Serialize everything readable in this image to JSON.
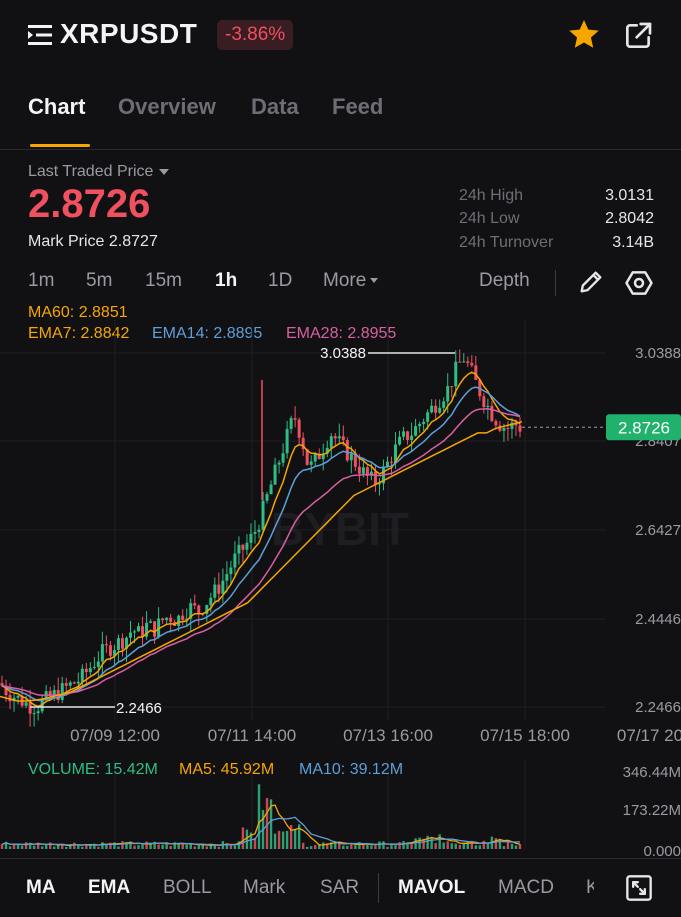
{
  "header": {
    "symbol": "XRPUSDT",
    "change": "-3.86%",
    "icons": [
      "menu-icon",
      "star-icon",
      "share-icon"
    ],
    "colors": {
      "negative": "#f0505f",
      "star": "#f7a600"
    }
  },
  "tabs": [
    {
      "label": "Chart",
      "active": true
    },
    {
      "label": "Overview",
      "active": false
    },
    {
      "label": "Data",
      "active": false
    },
    {
      "label": "Feed",
      "active": false
    }
  ],
  "price": {
    "ltp_label": "Last Traded Price",
    "last_price": "2.8726",
    "mark_label": "Mark Price",
    "mark_value": "2.8727",
    "stats": [
      {
        "label": "24h High",
        "value": "3.0131"
      },
      {
        "label": "24h Low",
        "value": "2.8042"
      },
      {
        "label": "24h Turnover",
        "value": "3.14B"
      }
    ]
  },
  "timeframes": {
    "items": [
      "1m",
      "5m",
      "15m",
      "1h",
      "1D",
      "More"
    ],
    "active": "1h",
    "depth": "Depth",
    "icons": [
      "pencil-icon",
      "settings-icon"
    ]
  },
  "indicators": {
    "ma60": "MA60: 2.8851",
    "ema7": "EMA7: 2.8842",
    "ema14": "EMA14: 2.8895",
    "ema28": "EMA28: 2.8955",
    "colors": {
      "ma60": "#f7a600",
      "ema7": "#f7a600",
      "ema14": "#5f9fd8",
      "ema28": "#d85fa0"
    }
  },
  "chart_data": {
    "type": "candlestick",
    "price_axis": [
      "3.0388",
      "2.8407",
      "2.6427",
      "2.4446",
      "2.2466"
    ],
    "ylim": [
      2.2466,
      3.0388
    ],
    "time_axis": [
      "07/09 12:00",
      "07/11 14:00",
      "07/13 16:00",
      "07/15 18:00",
      "07/17 20"
    ],
    "high_marker": "3.0388",
    "low_marker": "2.2466",
    "current_price_tag": "2.8726",
    "watermark": "BYBIT",
    "price_path": [
      2.3,
      2.28,
      2.27,
      2.26,
      2.25,
      2.247,
      2.26,
      2.27,
      2.28,
      2.29,
      2.3,
      2.31,
      2.33,
      2.35,
      2.37,
      2.38,
      2.39,
      2.4,
      2.42,
      2.41,
      2.43,
      2.42,
      2.44,
      2.45,
      2.44,
      2.46,
      2.47,
      2.46,
      2.48,
      2.5,
      2.52,
      2.55,
      2.58,
      2.6,
      2.62,
      2.65,
      2.7,
      2.75,
      2.8,
      2.85,
      2.9,
      2.85,
      2.78,
      2.8,
      2.83,
      2.86,
      2.84,
      2.82,
      2.8,
      2.78,
      2.76,
      2.75,
      2.77,
      2.8,
      2.83,
      2.85,
      2.86,
      2.88,
      2.9,
      2.92,
      2.94,
      2.96,
      3.0,
      3.03,
      3.0,
      2.96,
      2.93,
      2.9,
      2.88,
      2.87,
      2.88,
      2.87
    ],
    "ma60_path": [
      2.27,
      2.265,
      2.26,
      2.26,
      2.262,
      2.265,
      2.27,
      2.275,
      2.28,
      2.29,
      2.3,
      2.31,
      2.32,
      2.33,
      2.34,
      2.35,
      2.36,
      2.37,
      2.38,
      2.39,
      2.4,
      2.41,
      2.42,
      2.43,
      2.44,
      2.45,
      2.46,
      2.47,
      2.48,
      2.5,
      2.52,
      2.54,
      2.56,
      2.58,
      2.6,
      2.62,
      2.64,
      2.66,
      2.68,
      2.7,
      2.72,
      2.73,
      2.74,
      2.75,
      2.76,
      2.77,
      2.78,
      2.79,
      2.8,
      2.81,
      2.82,
      2.83,
      2.84,
      2.85,
      2.86,
      2.86,
      2.87,
      2.875,
      2.88,
      2.885
    ]
  },
  "volume": {
    "legend": "VOLUME: 15.42M",
    "ma5": "MA5: 45.92M",
    "ma10": "MA10: 39.12M",
    "axis": [
      "346.44M",
      "173.22M",
      "0.000"
    ],
    "colors": {
      "volume": "#2ebd85",
      "ma5": "#f7a600",
      "ma10": "#5f9fd8"
    }
  },
  "bottom_tabs": [
    {
      "label": "MA",
      "active": true
    },
    {
      "label": "EMA",
      "active": true
    },
    {
      "label": "BOLL",
      "active": false
    },
    {
      "label": "Mark",
      "active": false
    },
    {
      "label": "SAR",
      "active": false
    },
    {
      "label": "MAVOL",
      "active": true
    },
    {
      "label": "MACD",
      "active": false
    },
    {
      "label": "K",
      "active": false
    }
  ],
  "bottom_icons": [
    "expand-icon"
  ]
}
